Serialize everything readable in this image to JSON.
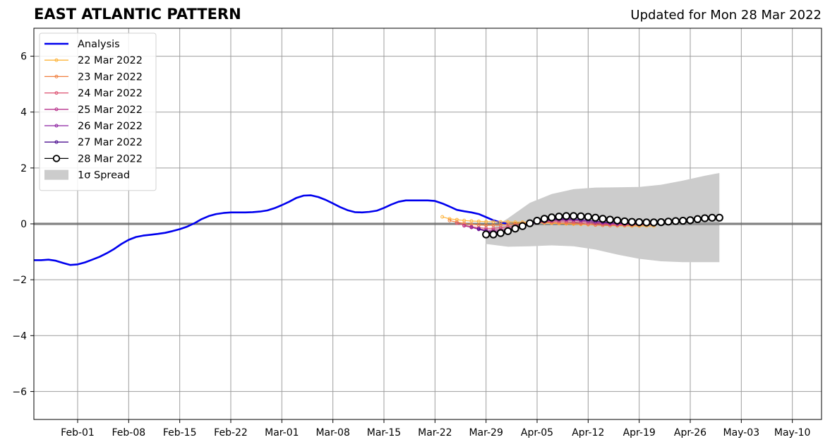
{
  "header": {
    "title": "EAST ATLANTIC PATTERN",
    "subtitle": "Updated for Mon 28 Mar 2022"
  },
  "chart_data": {
    "type": "line",
    "title": "EAST ATLANTIC PATTERN",
    "xlabel": "",
    "ylabel": "",
    "x_start": "2022-01-26",
    "xlim": [
      "2022-01-26",
      "2022-05-14"
    ],
    "ylim": [
      -7,
      7
    ],
    "yticks": [
      -6,
      -4,
      -2,
      0,
      2,
      4,
      6
    ],
    "ytick_labels": [
      "−6",
      "−4",
      "−2",
      "0",
      "2",
      "4",
      "6"
    ],
    "xticks": [
      "2022-02-01",
      "2022-02-08",
      "2022-02-15",
      "2022-02-22",
      "2022-03-01",
      "2022-03-08",
      "2022-03-15",
      "2022-03-22",
      "2022-03-29",
      "2022-04-05",
      "2022-04-12",
      "2022-04-19",
      "2022-04-26",
      "2022-05-03",
      "2022-05-10"
    ],
    "xtick_labels": [
      "Feb-01",
      "Feb-08",
      "Feb-15",
      "Feb-22",
      "Mar-01",
      "Mar-08",
      "Mar-15",
      "Mar-22",
      "Mar-29",
      "Apr-05",
      "Apr-12",
      "Apr-19",
      "Apr-26",
      "May-03",
      "May-10"
    ],
    "grid": true,
    "zero_line": true,
    "legend_position": "top-left",
    "analysis": {
      "name": "Analysis",
      "color": "#0000ee",
      "values": [
        -1.3,
        -1.3,
        -1.28,
        -1.32,
        -1.4,
        -1.47,
        -1.45,
        -1.38,
        -1.28,
        -1.18,
        -1.05,
        -0.9,
        -0.72,
        -0.57,
        -0.47,
        -0.42,
        -0.39,
        -0.36,
        -0.32,
        -0.26,
        -0.19,
        -0.1,
        0.02,
        0.17,
        0.28,
        0.35,
        0.39,
        0.41,
        0.41,
        0.41,
        0.42,
        0.44,
        0.48,
        0.56,
        0.67,
        0.79,
        0.93,
        1.01,
        1.02,
        0.96,
        0.86,
        0.73,
        0.6,
        0.49,
        0.42,
        0.41,
        0.43,
        0.47,
        0.57,
        0.69,
        0.79,
        0.84,
        0.84,
        0.84,
        0.84,
        0.82,
        0.73,
        0.62,
        0.5,
        0.45,
        0.41,
        0.35,
        0.24,
        0.13,
        0.05,
        0.0
      ]
    },
    "forecasts": [
      {
        "name": "22 Mar 2022",
        "color": "#fdb43c",
        "start": "2022-03-23",
        "values": [
          0.25,
          0.18,
          0.15,
          0.12,
          0.1,
          0.09,
          0.08,
          0.08,
          0.07,
          0.07,
          0.06,
          0.06,
          0.05,
          0.04,
          0.03,
          0.02,
          0.01,
          0.0,
          -0.01,
          -0.02,
          -0.03,
          -0.04,
          -0.05,
          -0.06,
          -0.07,
          -0.07,
          -0.08,
          -0.08,
          -0.08,
          -0.08
        ]
      },
      {
        "name": "23 Mar 2022",
        "color": "#f07f3f",
        "start": "2022-03-24",
        "values": [
          0.12,
          0.06,
          0.02,
          -0.02,
          -0.04,
          -0.05,
          -0.05,
          -0.04,
          -0.02,
          0.0,
          0.02,
          0.04,
          0.05,
          0.05,
          0.04,
          0.03,
          0.02,
          0.01,
          0.0,
          -0.02,
          -0.04,
          -0.05,
          -0.06,
          -0.06,
          -0.06,
          -0.05,
          -0.05,
          -0.04,
          -0.04
        ]
      },
      {
        "name": "24 Mar 2022",
        "color": "#dc5070",
        "start": "2022-03-25",
        "values": [
          0.02,
          -0.05,
          -0.1,
          -0.14,
          -0.16,
          -0.16,
          -0.14,
          -0.1,
          -0.06,
          -0.02,
          0.02,
          0.05,
          0.07,
          0.08,
          0.08,
          0.07,
          0.06,
          0.04,
          0.02,
          0.0,
          -0.01,
          -0.02,
          -0.03,
          -0.03,
          -0.03,
          -0.02,
          -0.02,
          -0.02
        ]
      },
      {
        "name": "25 Mar 2022",
        "color": "#b8338c",
        "start": "2022-03-26",
        "values": [
          -0.07,
          -0.13,
          -0.18,
          -0.22,
          -0.23,
          -0.21,
          -0.17,
          -0.11,
          -0.05,
          0.0,
          0.05,
          0.09,
          0.12,
          0.13,
          0.13,
          0.12,
          0.1,
          0.07,
          0.05,
          0.02,
          0.0,
          -0.01,
          -0.02,
          -0.02,
          -0.02,
          -0.02,
          -0.02
        ]
      },
      {
        "name": "26 Mar 2022",
        "color": "#8c21a0",
        "start": "2022-03-27",
        "values": [
          -0.12,
          -0.2,
          -0.26,
          -0.28,
          -0.27,
          -0.23,
          -0.16,
          -0.09,
          -0.02,
          0.04,
          0.09,
          0.13,
          0.15,
          0.16,
          0.16,
          0.14,
          0.12,
          0.09,
          0.07,
          0.04,
          0.02,
          0.01,
          0.0,
          0.0,
          0.0,
          0.0
        ]
      },
      {
        "name": "27 Mar 2022",
        "color": "#4d1090",
        "start": "2022-03-28",
        "values": [
          -0.18,
          -0.27,
          -0.32,
          -0.31,
          -0.26,
          -0.18,
          -0.09,
          0.0,
          0.06,
          0.11,
          0.15,
          0.17,
          0.18,
          0.17,
          0.15,
          0.12,
          0.09,
          0.06,
          0.04,
          0.02,
          0.01,
          0.0,
          0.0,
          0.0,
          0.0
        ]
      },
      {
        "name": "28 Mar 2022",
        "color": "#000000",
        "marker_fill": "#ffffff",
        "start": "2022-03-29",
        "values": [
          -0.38,
          -0.38,
          -0.33,
          -0.26,
          -0.17,
          -0.08,
          0.02,
          0.11,
          0.18,
          0.23,
          0.26,
          0.28,
          0.28,
          0.27,
          0.25,
          0.22,
          0.18,
          0.15,
          0.12,
          0.09,
          0.07,
          0.06,
          0.05,
          0.05,
          0.06,
          0.08,
          0.1,
          0.11,
          0.13,
          0.17,
          0.2,
          0.22,
          0.22
        ]
      }
    ],
    "spread": {
      "name": "1σ Spread",
      "color": "#cccccc",
      "x": [
        "2022-03-29",
        "2022-04-01",
        "2022-04-04",
        "2022-04-07",
        "2022-04-10",
        "2022-04-13",
        "2022-04-16",
        "2022-04-19",
        "2022-04-22",
        "2022-04-25",
        "2022-04-28",
        "2022-04-30"
      ],
      "upper": [
        -0.3,
        0.2,
        0.75,
        1.07,
        1.24,
        1.3,
        1.31,
        1.32,
        1.4,
        1.55,
        1.72,
        1.82
      ],
      "lower": [
        -0.72,
        -0.82,
        -0.8,
        -0.77,
        -0.8,
        -0.92,
        -1.1,
        -1.25,
        -1.34,
        -1.37,
        -1.37,
        -1.37
      ]
    }
  }
}
